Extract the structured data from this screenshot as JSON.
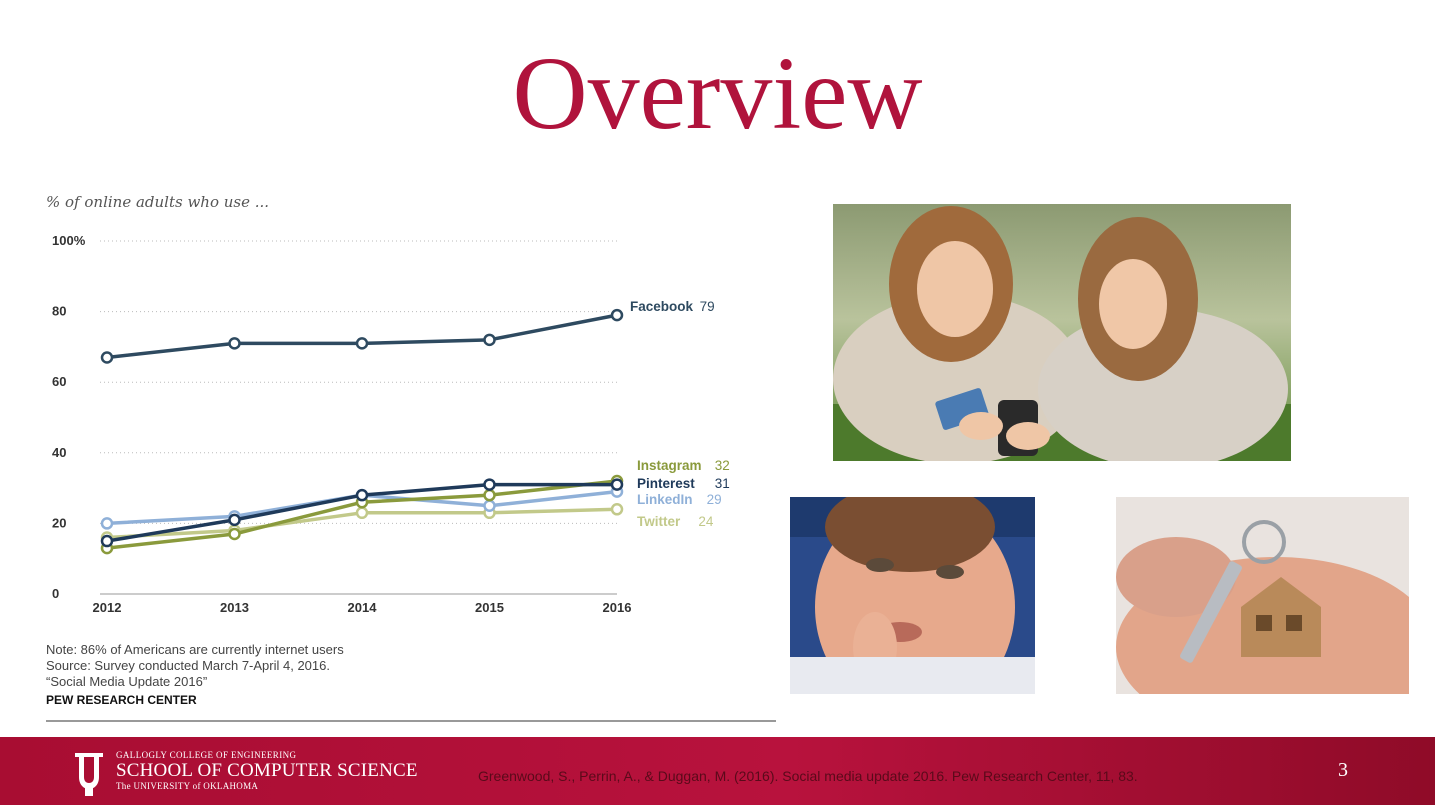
{
  "slide": {
    "title": "Overview",
    "page_number": "3"
  },
  "footer": {
    "logo_line1": "GALLOGLY COLLEGE OF ENGINEERING",
    "logo_line2": "SCHOOL OF COMPUTER SCIENCE",
    "logo_line3": "The UNIVERSITY of OKLAHOMA",
    "citation": "Greenwood, S., Perrin, A., & Duggan, M. (2016). Social media update 2016. Pew Research Center, 11, 83."
  },
  "chart_data": {
    "type": "line",
    "subtitle": "% of online adults who use ...",
    "x": [
      2012,
      2013,
      2014,
      2015,
      2016
    ],
    "xticks": [
      "2012",
      "2013",
      "2014",
      "2015",
      "2016"
    ],
    "yticks": [
      "0",
      "20",
      "40",
      "60",
      "80",
      "100%"
    ],
    "ylim": [
      0,
      100
    ],
    "grid": true,
    "series": [
      {
        "name": "Facebook",
        "end_label": "79",
        "color": "#2e4a60",
        "values": [
          67,
          71,
          71,
          72,
          79
        ]
      },
      {
        "name": "Instagram",
        "end_label": "32",
        "color": "#8a9a3c",
        "values": [
          13,
          17,
          26,
          28,
          32
        ]
      },
      {
        "name": "Pinterest",
        "end_label": "31",
        "color": "#1f3a5a",
        "values": [
          15,
          21,
          28,
          31,
          31
        ]
      },
      {
        "name": "LinkedIn",
        "end_label": "29",
        "color": "#8fb0d8",
        "values": [
          20,
          22,
          28,
          25,
          29
        ]
      },
      {
        "name": "Twitter",
        "end_label": "24",
        "color": "#c2c98a",
        "values": [
          16,
          18,
          23,
          23,
          24
        ]
      }
    ],
    "notes": [
      "Note: 86% of Americans are currently internet users",
      "Source: Survey conducted March 7-April 4, 2016.",
      "“Social Media Update 2016”"
    ],
    "source_label": "PEW RESEARCH CENTER"
  },
  "colors": {
    "title": "#b0133c",
    "footer_bar": "#b0133c"
  }
}
